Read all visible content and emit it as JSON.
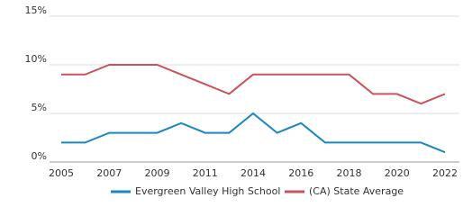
{
  "chart_data": {
    "type": "line",
    "categories": [
      "2005",
      null,
      "2007",
      null,
      "2009",
      null,
      "2011",
      null,
      "2014",
      null,
      "2016",
      null,
      "2018",
      null,
      "2020",
      null,
      "2022"
    ],
    "series": [
      {
        "name": "Evergreen Valley High School",
        "color": "#1a87c2",
        "values": [
          2,
          2,
          3,
          3,
          3,
          4,
          3,
          3,
          5,
          3,
          4,
          2,
          2,
          2,
          2,
          2,
          1
        ]
      },
      {
        "name": "(CA) State Average",
        "color": "#c9535c",
        "values": [
          9,
          9,
          10,
          10,
          10,
          9,
          8,
          7,
          9,
          9,
          9,
          9,
          9,
          7,
          7,
          6,
          7
        ]
      }
    ],
    "ylim": [
      0,
      15
    ],
    "yticks": [
      {
        "value": 0,
        "label": "0%"
      },
      {
        "value": 5,
        "label": "5%"
      },
      {
        "value": 10,
        "label": "10%"
      },
      {
        "value": 15,
        "label": "15%"
      }
    ],
    "grid": true,
    "legend": "bottom"
  }
}
